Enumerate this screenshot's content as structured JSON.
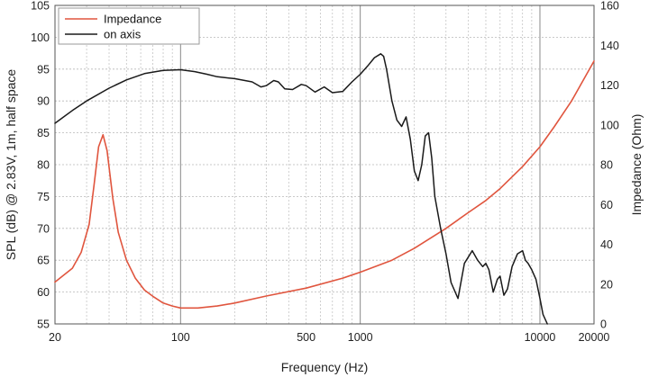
{
  "chart_data": {
    "type": "line",
    "xlabel": "Frequency (Hz)",
    "ylabel": "SPL (dB) @ 2.83V, 1m, half space",
    "y2label": "Impedance (Ohm)",
    "x_scale": "log",
    "xlim": [
      20,
      20000
    ],
    "ylim": [
      55,
      105
    ],
    "y2lim": [
      0,
      160
    ],
    "x_ticks": [
      {
        "value": 20,
        "label": "20"
      },
      {
        "value": 100,
        "label": "100"
      },
      {
        "value": 500,
        "label": "500"
      },
      {
        "value": 1000,
        "label": "1000"
      },
      {
        "value": 10000,
        "label": "10000"
      },
      {
        "value": 20000,
        "label": "20000"
      }
    ],
    "y_ticks": [
      55,
      60,
      65,
      70,
      75,
      80,
      85,
      90,
      95,
      100,
      105
    ],
    "y2_ticks": [
      0,
      20,
      40,
      60,
      80,
      100,
      120,
      140,
      160
    ],
    "grid": true,
    "legend_position": "top-left",
    "series": [
      {
        "name": "Impedance",
        "axis": "right",
        "color": "#e0553e",
        "x": [
          20,
          22,
          25,
          28,
          31,
          33,
          35,
          37,
          39,
          42,
          45,
          50,
          56,
          63,
          71,
          80,
          90,
          100,
          125,
          160,
          200,
          300,
          500,
          800,
          1000,
          1500,
          2000,
          3000,
          4000,
          5000,
          6000,
          8000,
          10000,
          12000,
          15000,
          20000
        ],
        "values": [
          21,
          24,
          28,
          36,
          50,
          70,
          89,
          95,
          87,
          63,
          46,
          32,
          23,
          17,
          13.5,
          10.5,
          9,
          8,
          8,
          9,
          10.5,
          14,
          18,
          23,
          26,
          32,
          38,
          48,
          56,
          62,
          68,
          79,
          89,
          99,
          112,
          132
        ]
      },
      {
        "name": "on axis",
        "axis": "left",
        "color": "#1a1a1a",
        "x": [
          20,
          25,
          30,
          40,
          50,
          63,
          80,
          100,
          120,
          140,
          160,
          200,
          250,
          280,
          300,
          330,
          350,
          380,
          420,
          470,
          500,
          560,
          630,
          700,
          800,
          900,
          1000,
          1100,
          1200,
          1300,
          1350,
          1400,
          1500,
          1600,
          1700,
          1800,
          1900,
          2000,
          2100,
          2200,
          2300,
          2400,
          2500,
          2600,
          2800,
          3000,
          3200,
          3500,
          3800,
          4200,
          4500,
          4800,
          5000,
          5200,
          5500,
          5800,
          6000,
          6300,
          6600,
          7000,
          7500,
          8000,
          8300,
          8600,
          9000,
          9500,
          10000,
          10400,
          11000
        ],
        "values": [
          86.5,
          88.5,
          90.0,
          92.0,
          93.3,
          94.3,
          94.8,
          94.9,
          94.6,
          94.2,
          93.8,
          93.5,
          93.0,
          92.2,
          92.4,
          93.2,
          93.0,
          91.9,
          91.8,
          92.6,
          92.4,
          91.4,
          92.2,
          91.3,
          91.5,
          93.0,
          94.2,
          95.5,
          96.8,
          97.4,
          97.0,
          95.0,
          90.0,
          87.0,
          86.0,
          87.5,
          84.0,
          79.0,
          77.5,
          80.0,
          84.5,
          85.0,
          81.0,
          75.0,
          70.0,
          66.0,
          61.5,
          59.0,
          64.5,
          66.5,
          65.0,
          64.0,
          64.5,
          63.5,
          60.0,
          62.0,
          62.5,
          59.5,
          60.5,
          64.0,
          66.0,
          66.5,
          65.0,
          64.5,
          63.5,
          62.0,
          59.0,
          56.5,
          55.0
        ]
      }
    ]
  }
}
